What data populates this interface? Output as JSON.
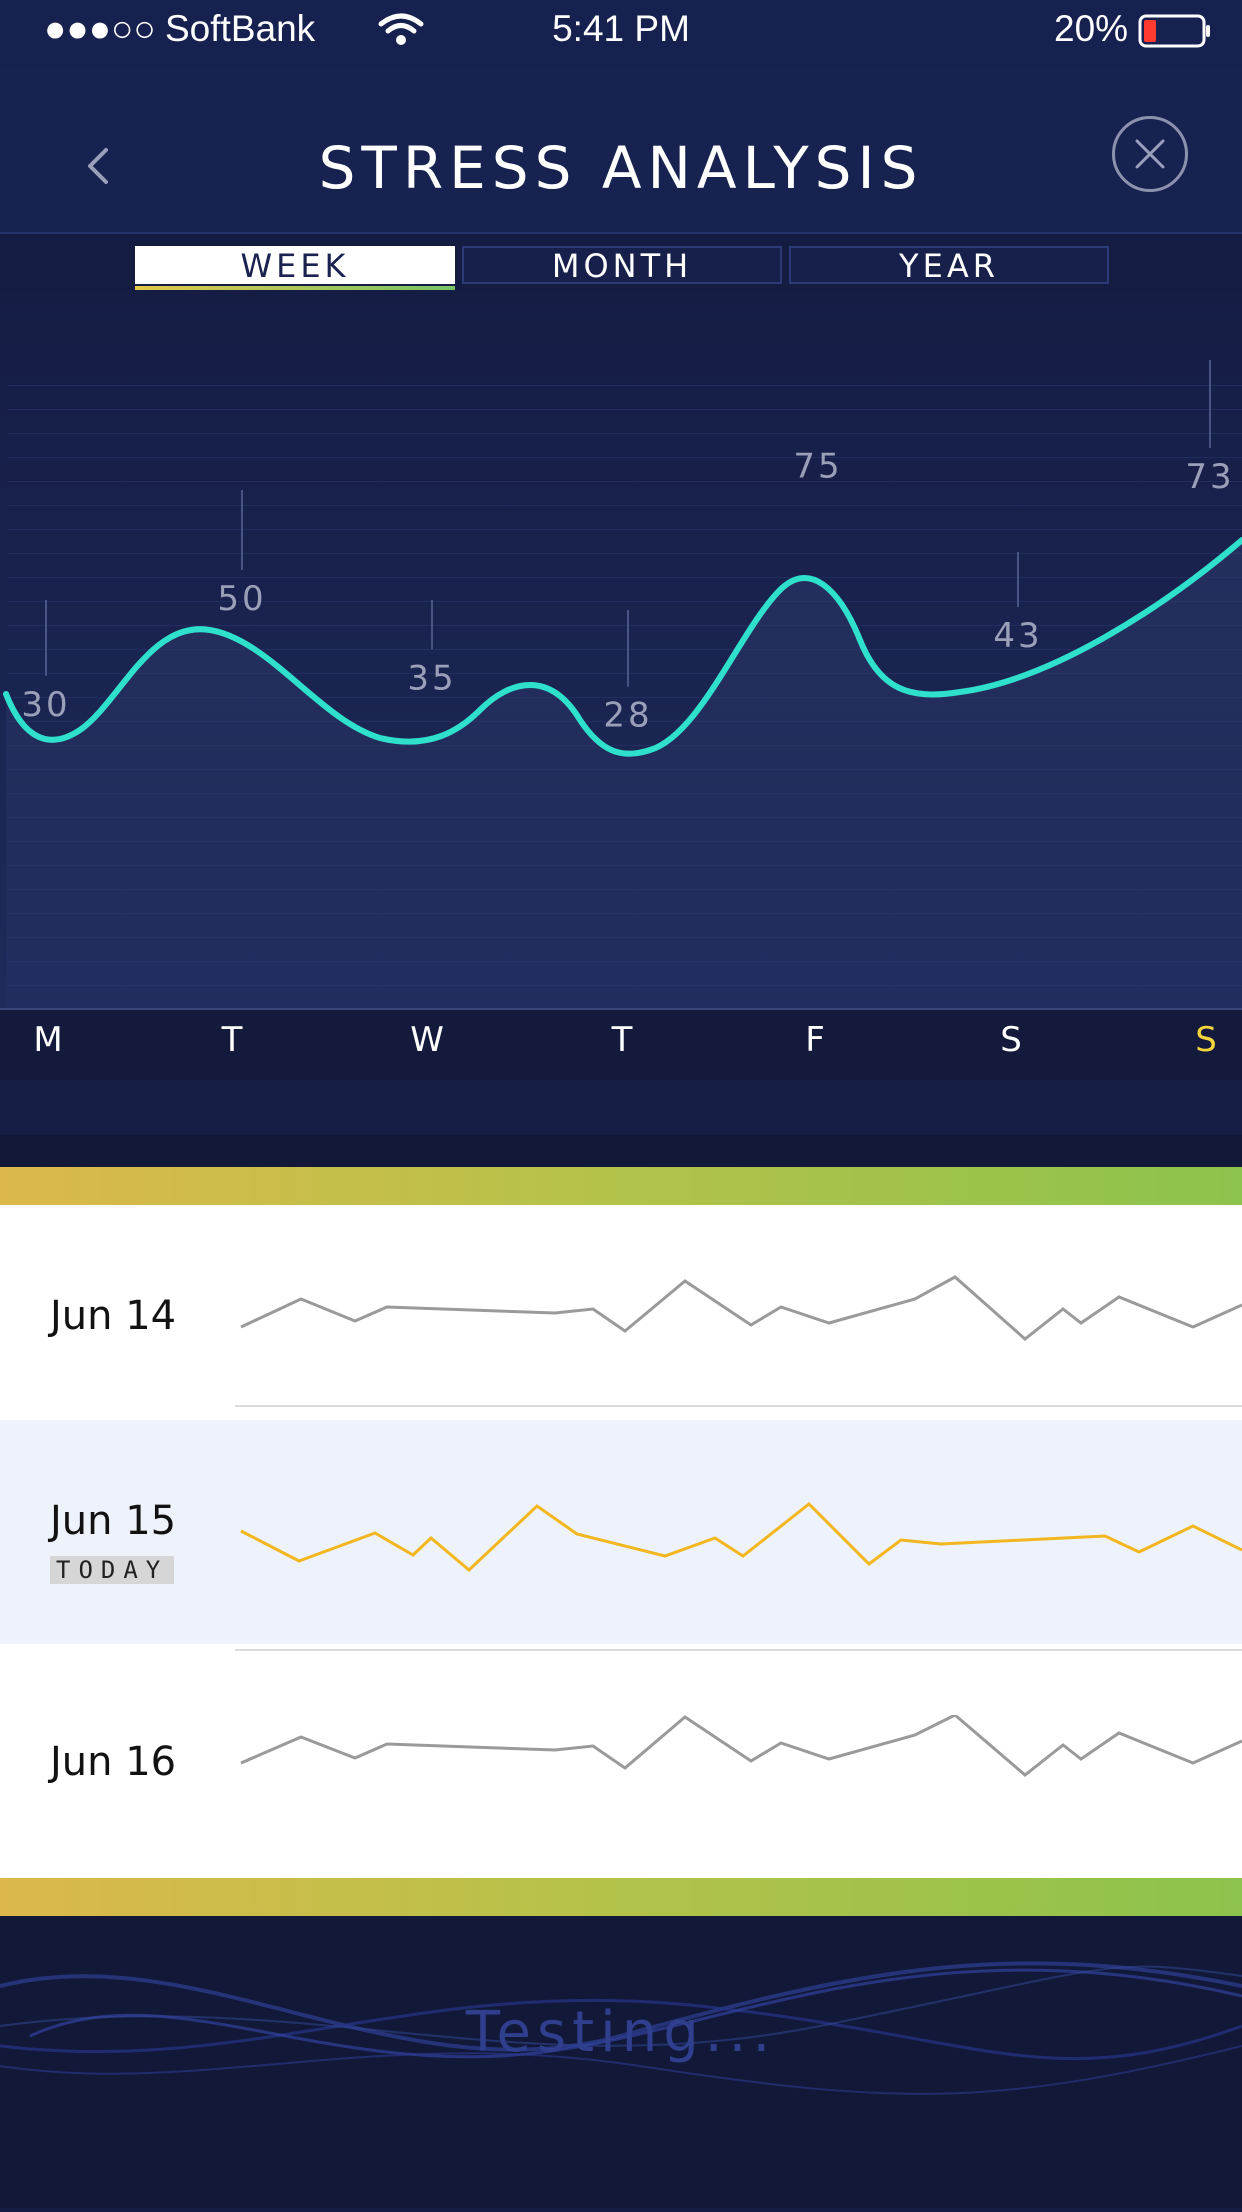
{
  "status_bar": {
    "signal": "●●●○○",
    "carrier": "SoftBank",
    "time": "5:41 PM",
    "battery": "20%",
    "icons": [
      "wifi-icon",
      "battery-icon"
    ]
  },
  "header": {
    "title": "STRESS ANALYSIS",
    "back_icon": "chevron-left-icon",
    "close_icon": "close-icon"
  },
  "tabs": [
    {
      "label": "WEEK",
      "active": true
    },
    {
      "label": "MONTH",
      "active": false
    },
    {
      "label": "YEAR",
      "active": false
    }
  ],
  "chart_data": {
    "type": "line",
    "categories": [
      "M",
      "T",
      "W",
      "T",
      "F",
      "S",
      "S"
    ],
    "values": [
      30,
      50,
      35,
      28,
      75,
      43,
      73
    ],
    "highlighted_category_index": 6,
    "gradient_colors": [
      "#f4c84a",
      "#6f66e8",
      "#c46fe0",
      "#e07ab8",
      "#c8985a",
      "#8cc43c",
      "#2fe0cc"
    ]
  },
  "history": {
    "rows": [
      {
        "date": "Jun 14",
        "badge": "",
        "highlighted": false,
        "line_color": "#9a9a9a"
      },
      {
        "date": "Jun 15",
        "badge": "TODAY",
        "highlighted": true,
        "line_color": "#f3b61f"
      },
      {
        "date": "Jun 16",
        "badge": "",
        "highlighted": false,
        "line_color": "#9a9a9a"
      }
    ]
  },
  "footer": {
    "status_text": "Testing..."
  },
  "colors": {
    "background": "#151c42",
    "accent_today": "#f5d43c",
    "highlight_row": "#eef2fb"
  }
}
